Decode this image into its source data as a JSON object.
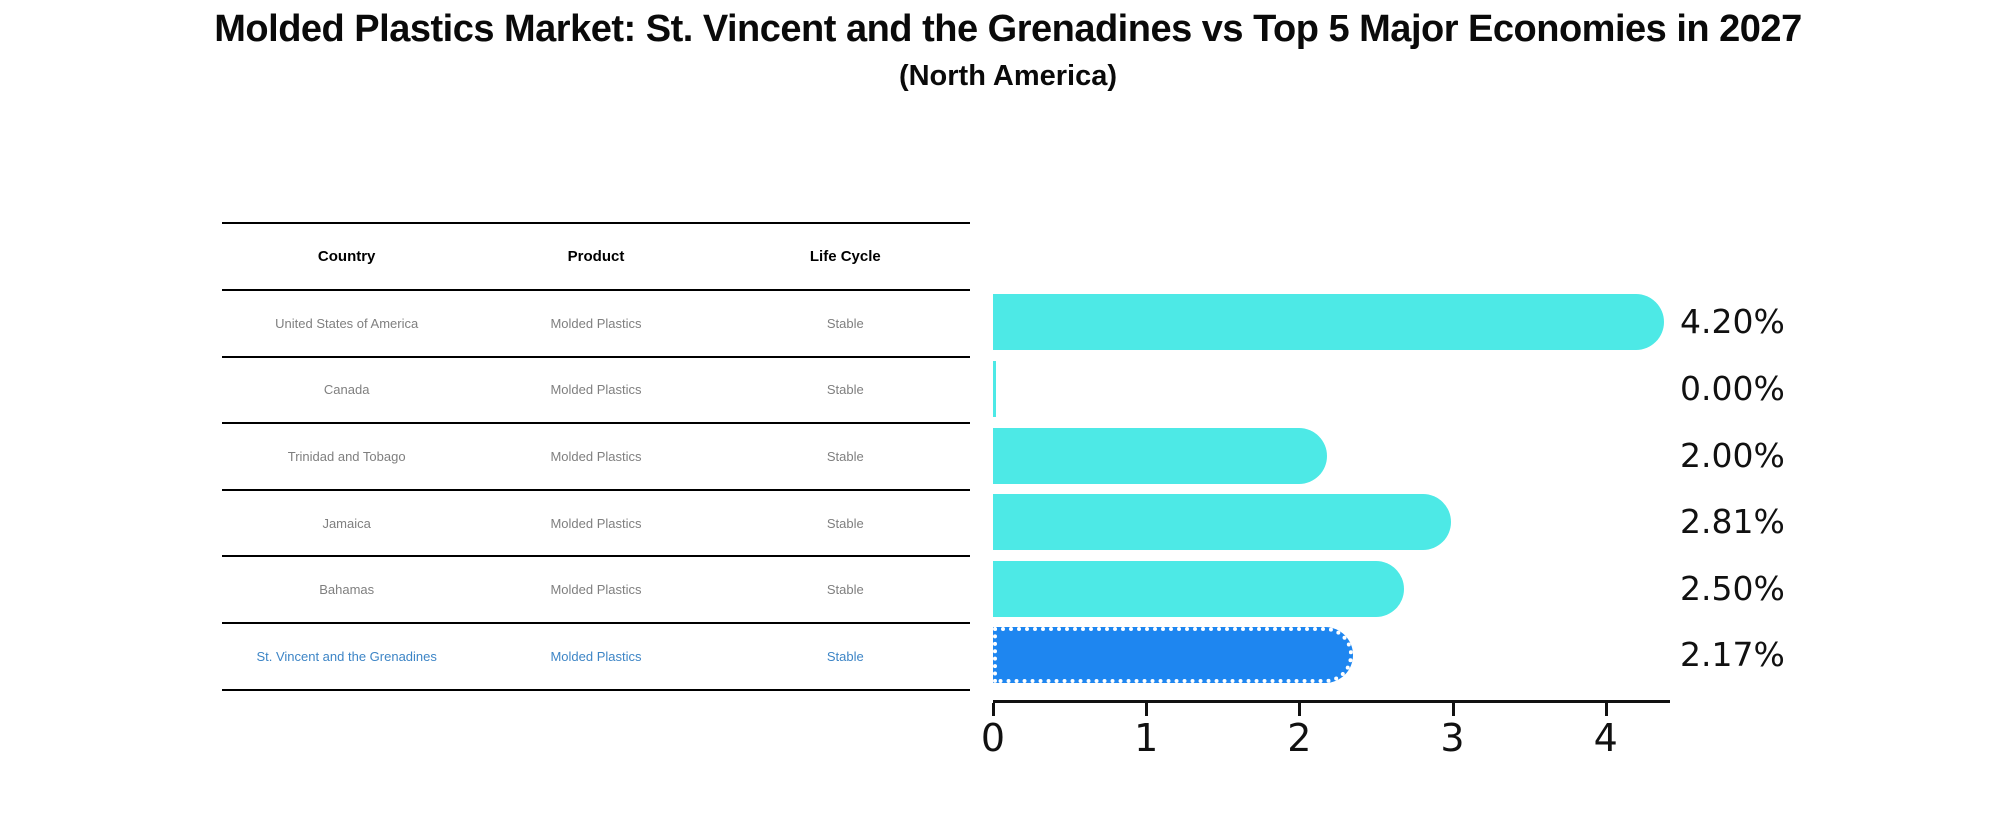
{
  "title": "Molded Plastics Market: St. Vincent and the Grenadines vs Top 5 Major Economies in 2027",
  "subtitle": "(North America)",
  "table": {
    "columns": [
      "Country",
      "Product",
      "Life Cycle"
    ],
    "rows": [
      {
        "country": "United States of America",
        "product": "Molded Plastics",
        "life_cycle": "Stable",
        "highlight": false
      },
      {
        "country": "Canada",
        "product": "Molded Plastics",
        "life_cycle": "Stable",
        "highlight": false
      },
      {
        "country": "Trinidad and Tobago",
        "product": "Molded Plastics",
        "life_cycle": "Stable",
        "highlight": false
      },
      {
        "country": "Jamaica",
        "product": "Molded Plastics",
        "life_cycle": "Stable",
        "highlight": false
      },
      {
        "country": "Bahamas",
        "product": "Molded Plastics",
        "life_cycle": "Stable",
        "highlight": false
      },
      {
        "country": "St. Vincent and the Grenadines",
        "product": "Molded Plastics",
        "life_cycle": "Stable",
        "highlight": true
      }
    ]
  },
  "chart_data": {
    "type": "bar",
    "orientation": "horizontal",
    "title": "Molded Plastics Market: St. Vincent and the Grenadines vs Top 5 Major Economies in 2027 (North America)",
    "categories": [
      "United States of America",
      "Canada",
      "Trinidad and Tobago",
      "Jamaica",
      "Bahamas",
      "St. Vincent and the Grenadines"
    ],
    "values": [
      4.2,
      0.0,
      2.0,
      2.81,
      2.5,
      2.17
    ],
    "value_labels": [
      "4.20%",
      "0.00%",
      "2.00%",
      "2.81%",
      "2.50%",
      "2.17%"
    ],
    "xlabel": "",
    "ylabel": "",
    "x_ticks": [
      0,
      1,
      2,
      3,
      4
    ],
    "xlim": [
      0,
      4.42
    ],
    "grid": false,
    "legend": null,
    "highlight_index": 5
  },
  "colors": {
    "bar": "#4DE9E6",
    "highlight_bar": "#1E86F0",
    "highlight_text": "#3D85C6",
    "row_text": "#7F7F7F",
    "header_text": "#000000",
    "axis": "#111111"
  }
}
